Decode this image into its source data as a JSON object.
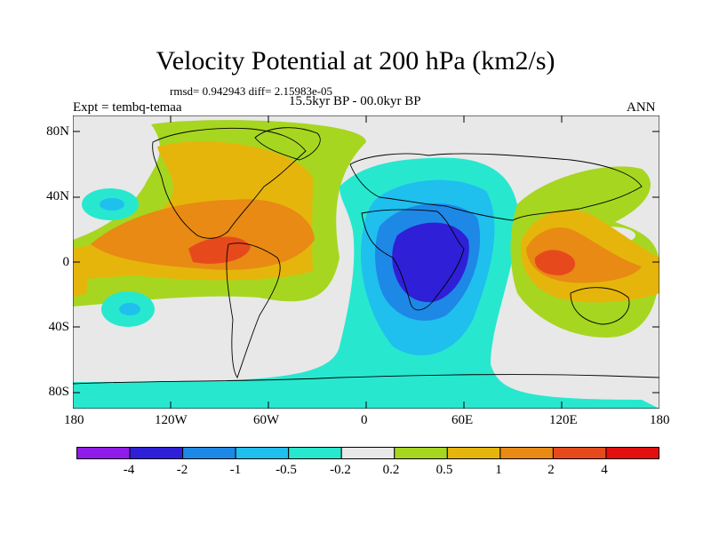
{
  "title": "Velocity Potential at 200 hPa (km2/s)",
  "stats_line": "rmsd= 0.942943 diff= 2.15983e-05",
  "period": "15.5kyr BP - 00.0kyr BP",
  "experiment": "Expt = tembq-temaa",
  "season": "ANN",
  "y_ticks": [
    "80N",
    "40N",
    "0",
    "40S",
    "80S"
  ],
  "x_ticks": [
    "180",
    "120W",
    "60W",
    "0",
    "60E",
    "120E",
    "180"
  ],
  "colorbar": {
    "labels": [
      "-4",
      "-2",
      "-1",
      "-0.5",
      "-0.2",
      "0.2",
      "0.5",
      "1",
      "2",
      "4"
    ],
    "colors": [
      "#8f1be8",
      "#2f1fd6",
      "#1e88e6",
      "#1fbfee",
      "#27e8cf",
      "#e8e8e8",
      "#a6d620",
      "#e6b50b",
      "#e88a14",
      "#e64a1c",
      "#e20f0f"
    ]
  }
}
